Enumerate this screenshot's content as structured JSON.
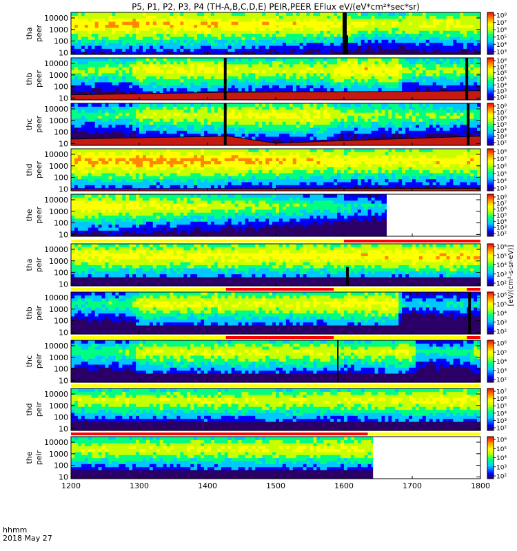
{
  "chart_data": {
    "type": "heatmap",
    "title": "P5, P1, P2, P3, P4 (TH-A,B,C,D,E) PEIR,PEER EFlux eV/(eV*cm²*sec*sr)",
    "x_axis": {
      "label_line1": "hhmm",
      "label_line2": "2018 May 27",
      "range": [
        1200,
        1800
      ],
      "ticks": [
        {
          "value": 1200,
          "label": "1200"
        },
        {
          "value": 1300,
          "label": "1300"
        },
        {
          "value": 1400,
          "label": "1400"
        },
        {
          "value": 1500,
          "label": "1500"
        },
        {
          "value": 1600,
          "label": "1600"
        },
        {
          "value": 1700,
          "label": "1700"
        },
        {
          "value": 1800,
          "label": "1800"
        }
      ]
    },
    "y_axis": {
      "scale": "log",
      "unit": "eV",
      "range": [
        7,
        30000
      ],
      "ticks": [
        {
          "value": 10,
          "label": "10"
        },
        {
          "value": 100,
          "label": "100"
        },
        {
          "value": 1000,
          "label": "1000"
        },
        {
          "value": 10000,
          "label": "10000"
        }
      ]
    },
    "colorbar": {
      "scale": "log",
      "unit_label": "[eV/(cm²-s-sr-eV)]",
      "colors": [
        "#2a0066",
        "#0000ff",
        "#00c8ff",
        "#00ff80",
        "#c8ff00",
        "#ffff00",
        "#ff8800",
        "#ff0000"
      ]
    },
    "panels": [
      {
        "label1": "tha",
        "label2": "peer",
        "cbar_ticks": [
          "10⁸",
          "10⁷",
          "10⁶",
          "10⁵",
          "10⁴",
          "10³"
        ],
        "data_end": 1800,
        "mode_bar": false,
        "profile": [
          [
            1200,
            0.75
          ],
          [
            1300,
            0.78
          ],
          [
            1400,
            0.76
          ],
          [
            1500,
            0.72
          ],
          [
            1600,
            0.7
          ],
          [
            1650,
            0.62
          ],
          [
            1700,
            0.66
          ],
          [
            1800,
            0.68
          ]
        ],
        "gaps": [
          [
            1598,
            1604
          ]
        ],
        "dropouts": [
          [
            1602
          ]
        ],
        "floor": []
      },
      {
        "label1": "thb",
        "label2": "peer",
        "cbar_ticks": [
          "10⁸",
          "10⁷",
          "10⁶",
          "10⁵",
          "10⁴",
          "10³",
          "10²"
        ],
        "data_end": 1800,
        "mode_bar": false,
        "profile": [
          [
            1200,
            0.55
          ],
          [
            1290,
            0.58
          ],
          [
            1300,
            0.68
          ],
          [
            1425,
            0.68
          ],
          [
            1430,
            0.62
          ],
          [
            1580,
            0.63
          ],
          [
            1590,
            0.72
          ],
          [
            1680,
            0.72
          ],
          [
            1690,
            0.55
          ],
          [
            1800,
            0.58
          ]
        ],
        "gaps": [
          [
            1424,
            1428
          ],
          [
            1778,
            1782
          ]
        ],
        "dropouts": [],
        "floor": [
          [
            1200,
            0.12
          ],
          [
            1425,
            0.18
          ],
          [
            1680,
            0.2
          ],
          [
            1800,
            0.22
          ]
        ]
      },
      {
        "label1": "thc",
        "label2": "peer",
        "cbar_ticks": [
          "10⁸",
          "10⁷",
          "10⁶",
          "10⁵",
          "10⁴",
          "10³",
          "10²"
        ],
        "data_end": 1800,
        "mode_bar": false,
        "profile": [
          [
            1200,
            0.45
          ],
          [
            1290,
            0.5
          ],
          [
            1300,
            0.62
          ],
          [
            1425,
            0.62
          ],
          [
            1430,
            0.68
          ],
          [
            1580,
            0.7
          ],
          [
            1590,
            0.6
          ],
          [
            1700,
            0.55
          ],
          [
            1800,
            0.5
          ]
        ],
        "gaps": [
          [
            1424,
            1428
          ],
          [
            1780,
            1784
          ]
        ],
        "dropouts": [],
        "floor": [
          [
            1200,
            0.15
          ],
          [
            1430,
            0.22
          ],
          [
            1500,
            0.05
          ],
          [
            1580,
            0.1
          ],
          [
            1800,
            0.22
          ]
        ]
      },
      {
        "label1": "thd",
        "label2": "peer",
        "cbar_ticks": [
          "10⁸",
          "10⁷",
          "10⁶",
          "10⁵",
          "10⁴",
          "10³"
        ],
        "data_end": 1800,
        "mode_bar": false,
        "profile": [
          [
            1200,
            0.8
          ],
          [
            1400,
            0.8
          ],
          [
            1600,
            0.72
          ],
          [
            1700,
            0.7
          ],
          [
            1800,
            0.76
          ]
        ],
        "gaps": [],
        "dropouts": [],
        "floor": [
          [
            1200,
            0.04
          ],
          [
            1800,
            0.06
          ]
        ]
      },
      {
        "label1": "the",
        "label2": "peer",
        "cbar_ticks": [
          "10⁸",
          "10⁷",
          "10⁶",
          "10⁵",
          "10⁴",
          "10³",
          "10²"
        ],
        "data_end": 1662,
        "mode_bar": false,
        "profile": [
          [
            1200,
            0.72
          ],
          [
            1300,
            0.68
          ],
          [
            1400,
            0.62
          ],
          [
            1500,
            0.55
          ],
          [
            1600,
            0.45
          ],
          [
            1662,
            0.35
          ]
        ],
        "gaps": [],
        "dropouts": [],
        "floor": []
      },
      {
        "label1": "tha",
        "label2": "peir",
        "cbar_ticks": [
          "10⁶",
          "10⁵",
          "10⁴",
          "10³",
          "10²"
        ],
        "data_end": 1800,
        "mode_bar": true,
        "mode_segments": [
          {
            "from": 1200,
            "to": 1600,
            "color": "#ffff00"
          },
          {
            "from": 1600,
            "to": 1800,
            "color": "#ff0000"
          }
        ],
        "profile": [
          [
            1200,
            0.7
          ],
          [
            1400,
            0.7
          ],
          [
            1600,
            0.72
          ],
          [
            1800,
            0.75
          ]
        ],
        "gaps": [],
        "dropouts": [
          [
            1603
          ]
        ],
        "floor": []
      },
      {
        "label1": "thb",
        "label2": "peir",
        "cbar_ticks": [
          "10⁶",
          "10⁵",
          "10⁴",
          "10³",
          "10²"
        ],
        "data_end": 1800,
        "mode_bar": true,
        "mode_segments": [
          {
            "from": 1200,
            "to": 1427,
            "color": "#ffff00"
          },
          {
            "from": 1427,
            "to": 1585,
            "color": "#ff0000"
          },
          {
            "from": 1585,
            "to": 1780,
            "color": "#ffff00"
          },
          {
            "from": 1780,
            "to": 1800,
            "color": "#ff0000"
          }
        ],
        "profile": [
          [
            1200,
            0.45
          ],
          [
            1290,
            0.48
          ],
          [
            1300,
            0.66
          ],
          [
            1580,
            0.66
          ],
          [
            1590,
            0.7
          ],
          [
            1678,
            0.7
          ],
          [
            1685,
            0.35
          ],
          [
            1800,
            0.38
          ]
        ],
        "gaps": [
          [
            1782,
            1786
          ]
        ],
        "dropouts": [],
        "floor": []
      },
      {
        "label1": "thc",
        "label2": "peir",
        "cbar_ticks": [
          "10⁶",
          "10⁵",
          "10⁴",
          "10³",
          "10²"
        ],
        "data_end": 1800,
        "mode_bar": true,
        "mode_segments": [
          {
            "from": 1200,
            "to": 1427,
            "color": "#ffff00"
          },
          {
            "from": 1427,
            "to": 1585,
            "color": "#ff0000"
          },
          {
            "from": 1585,
            "to": 1780,
            "color": "#ffff00"
          },
          {
            "from": 1780,
            "to": 1800,
            "color": "#ff0000"
          }
        ],
        "profile": [
          [
            1200,
            0.48
          ],
          [
            1290,
            0.5
          ],
          [
            1300,
            0.64
          ],
          [
            1580,
            0.64
          ],
          [
            1600,
            0.58
          ],
          [
            1700,
            0.66
          ],
          [
            1710,
            0.4
          ],
          [
            1780,
            0.45
          ],
          [
            1800,
            0.58
          ]
        ],
        "gaps": [
          [
            1590,
            1591
          ]
        ],
        "dropouts": [],
        "floor": []
      },
      {
        "label1": "thd",
        "label2": "peir",
        "cbar_ticks": [
          "10⁷",
          "10⁶",
          "10⁵",
          "10⁴",
          "10³",
          "10²"
        ],
        "data_end": 1800,
        "mode_bar": true,
        "mode_segments": [
          {
            "from": 1200,
            "to": 1800,
            "color": "#ffff00"
          }
        ],
        "profile": [
          [
            1200,
            0.6
          ],
          [
            1400,
            0.62
          ],
          [
            1600,
            0.64
          ],
          [
            1800,
            0.68
          ]
        ],
        "gaps": [],
        "dropouts": [],
        "floor": []
      },
      {
        "label1": "the",
        "label2": "peir",
        "cbar_ticks": [
          "10⁶",
          "10⁵",
          "10⁴",
          "10³",
          "10²"
        ],
        "data_end": 1642,
        "mode_bar": true,
        "mode_segments": [
          {
            "from": 1200,
            "to": 1635,
            "color": "#ff0000"
          },
          {
            "from": 1635,
            "to": 1800,
            "color": "#ffff00"
          }
        ],
        "profile": [
          [
            1200,
            0.62
          ],
          [
            1400,
            0.64
          ],
          [
            1642,
            0.66
          ]
        ],
        "gaps": [],
        "dropouts": [],
        "floor": []
      }
    ]
  }
}
